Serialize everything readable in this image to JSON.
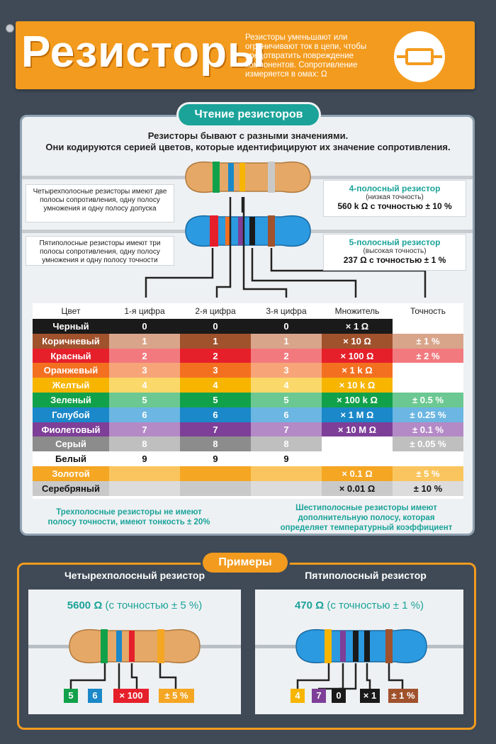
{
  "header": {
    "title": "Резисторы",
    "description": "Резисторы уменьшают или ограничивают ток в цепи, чтобы предотвратить повреждение компонентов. Сопротивление измеряется в омах: Ω"
  },
  "reading": {
    "pill": "Чтение резисторов",
    "intro_line1": "Резисторы бывают с разными значениями.",
    "intro_line2": "Они кодируются серией цветов, которые идентифицируют их значение сопротивления.",
    "note_four": "Четырехполосные резисторы имеют две полосы сопротивления, одну полосу умножения и одну полосу допуска",
    "note_five": "Пятиполосные резисторы имеют три полосы сопротивления, одну полосу умножения и одну полосу точности",
    "four_band": {
      "title": "4-полосный резистор",
      "sub": "(низкая точность)",
      "value": "560 k Ω с точностью ± 10 %"
    },
    "five_band": {
      "title": "5-полосный резистор",
      "sub": "(высокая точность)",
      "value": "237 Ω с точностью ± 1 %"
    }
  },
  "table": {
    "headers": [
      "Цвет",
      "1-я цифра",
      "2-я цифра",
      "3-я цифра",
      "Множитель",
      "Точность"
    ],
    "rows": [
      {
        "name": "Черный",
        "d1": "0",
        "d2": "0",
        "d3": "0",
        "mult": "× 1 Ω",
        "tol": "",
        "color": "#1a1a1a",
        "light": "#1a1a1a",
        "text": "#ffffff"
      },
      {
        "name": "Коричневый",
        "d1": "1",
        "d2": "1",
        "d3": "1",
        "mult": "× 10 Ω",
        "tol": "± 1 %",
        "color": "#a0522d",
        "light": "#d9a58a",
        "text": "#ffffff"
      },
      {
        "name": "Красный",
        "d1": "2",
        "d2": "2",
        "d3": "2",
        "mult": "× 100 Ω",
        "tol": "± 2 %",
        "color": "#e5202b",
        "light": "#f27a7f",
        "text": "#ffffff"
      },
      {
        "name": "Оранжевый",
        "d1": "3",
        "d2": "3",
        "d3": "3",
        "mult": "× 1 k Ω",
        "tol": "",
        "color": "#f37021",
        "light": "#f7a578",
        "text": "#ffffff"
      },
      {
        "name": "Желтый",
        "d1": "4",
        "d2": "4",
        "d3": "4",
        "mult": "× 10 k Ω",
        "tol": "",
        "color": "#f7b500",
        "light": "#fbd86a",
        "text": "#ffffff"
      },
      {
        "name": "Зеленый",
        "d1": "5",
        "d2": "5",
        "d3": "5",
        "mult": "× 100 k Ω",
        "tol": "± 0.5 %",
        "color": "#12a14b",
        "light": "#6cc892",
        "text": "#ffffff"
      },
      {
        "name": "Голубой",
        "d1": "6",
        "d2": "6",
        "d3": "6",
        "mult": "× 1 M Ω",
        "tol": "± 0.25 %",
        "color": "#1a88c9",
        "light": "#6bb6e2",
        "text": "#ffffff"
      },
      {
        "name": "Фиолетовый",
        "d1": "7",
        "d2": "7",
        "d3": "7",
        "mult": "× 10 M Ω",
        "tol": "± 0.1 %",
        "color": "#7e3f98",
        "light": "#b48ac6",
        "text": "#ffffff"
      },
      {
        "name": "Серый",
        "d1": "8",
        "d2": "8",
        "d3": "8",
        "mult": "",
        "tol": "± 0.05 %",
        "color": "#8c8c8c",
        "light": "#bfbfbf",
        "text": "#ffffff"
      },
      {
        "name": "Белый",
        "d1": "9",
        "d2": "9",
        "d3": "9",
        "mult": "",
        "tol": "",
        "color": "#ffffff",
        "light": "#ffffff",
        "text": "#111111"
      },
      {
        "name": "Золотой",
        "d1": "",
        "d2": "",
        "d3": "",
        "mult": "× 0.1 Ω",
        "tol": "± 5 %",
        "color": "#f5a623",
        "light": "#fac55e",
        "text": "#ffffff"
      },
      {
        "name": "Серебряный",
        "d1": "",
        "d2": "",
        "d3": "",
        "mult": "× 0.01 Ω",
        "tol": "± 10 %",
        "color": "#c9c9c9",
        "light": "#dcdcdc",
        "text": "#111111"
      }
    ],
    "foot_left": "Трехполосные резисторы не имеют полосу точности, имеют тонкость ± 20%",
    "foot_right": "Шестиполосные резисторы имеют дополнительную полосу, которая определяет температурный коэффициент"
  },
  "examples": {
    "pill": "Примеры",
    "four": {
      "title": "Четырехполосный резистор",
      "value": "5600 Ω",
      "tol": "(с точностью ± 5 %)",
      "tags": [
        "5",
        "6",
        "× 100",
        "± 5 %"
      ]
    },
    "five": {
      "title": "Пятиполосный резистор",
      "value": "470 Ω",
      "tol": "(с точностью ± 1 %)",
      "tags": [
        "4",
        "7",
        "0",
        "× 1",
        "± 1 %"
      ]
    }
  },
  "colors": {
    "accent_orange": "#f39b1e",
    "accent_teal": "#1ba39a",
    "background": "#3f4a56"
  }
}
